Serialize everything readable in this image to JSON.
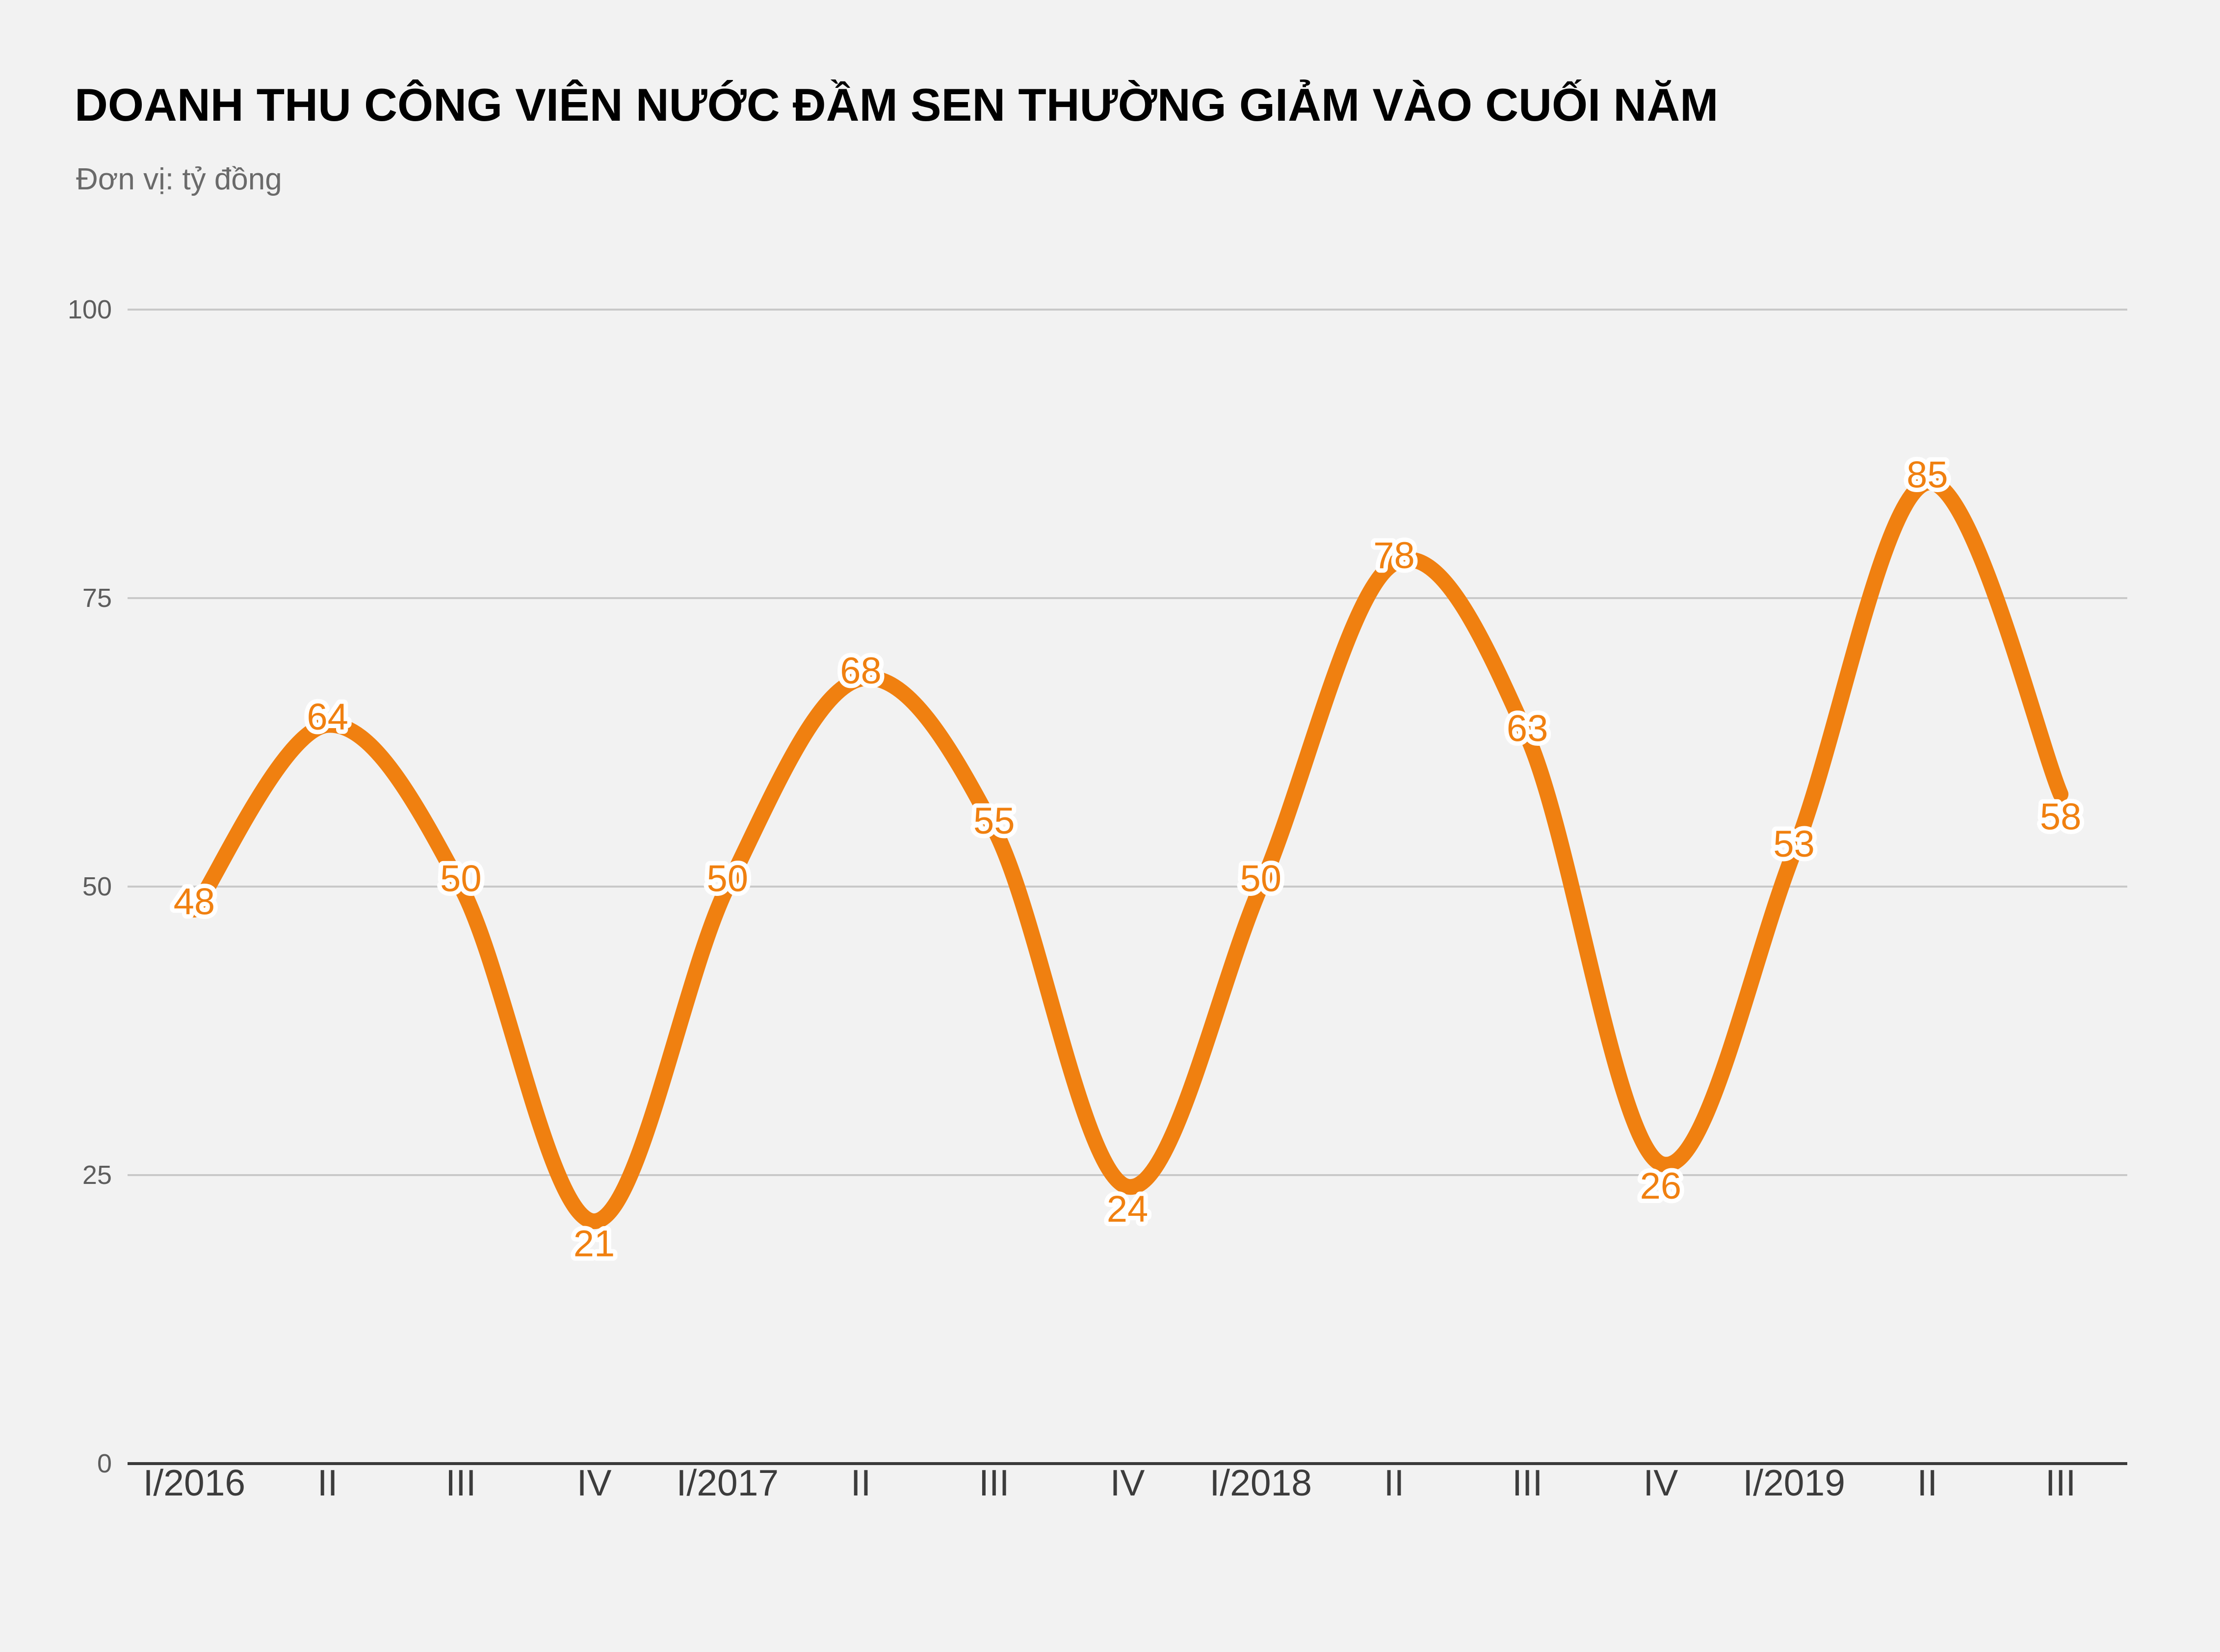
{
  "chart_data": {
    "type": "line",
    "title": "DOANH THU CÔNG VIÊN NƯỚC ĐẦM SEN THƯỜNG GIẢM VÀO CUỐI NĂM",
    "subtitle": "Đơn vị: tỷ đồng",
    "series_name": "Doanh thu",
    "categories": [
      "I/2016",
      "II",
      "III",
      "IV",
      "I/2017",
      "II",
      "III",
      "IV",
      "I/2018",
      "II",
      "III",
      "IV",
      "I/2019",
      "II",
      "III"
    ],
    "values": [
      48,
      64,
      50,
      21,
      50,
      68,
      55,
      24,
      50,
      78,
      63,
      26,
      53,
      85,
      58
    ],
    "ylim": [
      0,
      100
    ],
    "yticks": [
      0,
      25,
      50,
      75,
      100
    ],
    "grid": true,
    "legend": "none",
    "label_side": [
      "center",
      "center",
      "center",
      "below",
      "center",
      "center",
      "center",
      "below",
      "center",
      "center",
      "center",
      "below",
      "center",
      "center",
      "below"
    ],
    "colors": {
      "line": "#F08010",
      "data_label": "#F08010",
      "data_label_halo": "#FFFFFF",
      "grid": "#C9C9C9",
      "zero_axis": "#3A3A3A",
      "x_tick": "#3C3C3C",
      "y_tick": "#5D5D5D",
      "title": "#000000",
      "subtitle": "#6A6A6A",
      "background": "#F2F2F2"
    }
  }
}
